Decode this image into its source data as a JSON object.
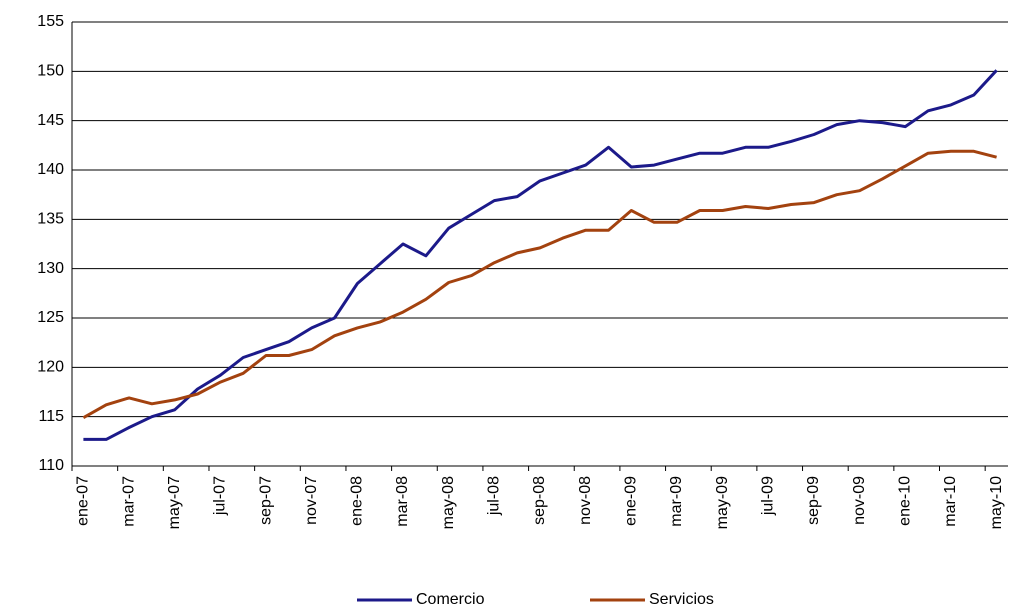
{
  "chart_data": {
    "type": "line",
    "categories": [
      "ene-07",
      null,
      "mar-07",
      null,
      "may-07",
      null,
      "jul-07",
      null,
      "sep-07",
      null,
      "nov-07",
      null,
      "ene-08",
      null,
      "mar-08",
      null,
      "may-08",
      null,
      "jul-08",
      null,
      "sep-08",
      null,
      "nov-08",
      null,
      "ene-09",
      null,
      "mar-09",
      null,
      "may-09",
      null,
      "jul-09",
      null,
      "sep-09",
      null,
      "nov-09",
      null,
      "ene-10",
      null,
      "mar-10",
      null,
      "may-10"
    ],
    "series": [
      {
        "name": "Comercio",
        "color": "#1c1a8a",
        "values": [
          112.7,
          112.7,
          113.9,
          115.0,
          115.7,
          117.8,
          119.2,
          121.0,
          121.8,
          122.6,
          124.0,
          125.0,
          128.5,
          130.5,
          132.5,
          131.3,
          134.1,
          135.5,
          136.9,
          137.3,
          138.9,
          139.7,
          140.5,
          142.3,
          140.3,
          140.5,
          141.1,
          141.7,
          141.7,
          142.3,
          142.3,
          142.9,
          143.6,
          144.6,
          145.0,
          144.8,
          144.4,
          146.0,
          146.6,
          147.6,
          150.1
        ]
      },
      {
        "name": "Servicios",
        "color": "#a3420f",
        "values": [
          114.9,
          116.2,
          116.9,
          116.3,
          116.7,
          117.3,
          118.5,
          119.4,
          121.2,
          121.2,
          121.8,
          123.2,
          124.0,
          124.6,
          125.6,
          126.9,
          128.6,
          129.3,
          130.6,
          131.6,
          132.1,
          133.1,
          133.9,
          133.9,
          135.9,
          134.7,
          134.7,
          135.9,
          135.9,
          136.3,
          136.1,
          136.5,
          136.7,
          137.5,
          137.9,
          139.1,
          140.4,
          141.7,
          141.9,
          141.9,
          141.3
        ]
      }
    ],
    "ylim": [
      110,
      155
    ],
    "yticks": [
      110,
      115,
      120,
      125,
      130,
      135,
      140,
      145,
      150,
      155
    ],
    "grid": true,
    "legend": "bottom"
  }
}
